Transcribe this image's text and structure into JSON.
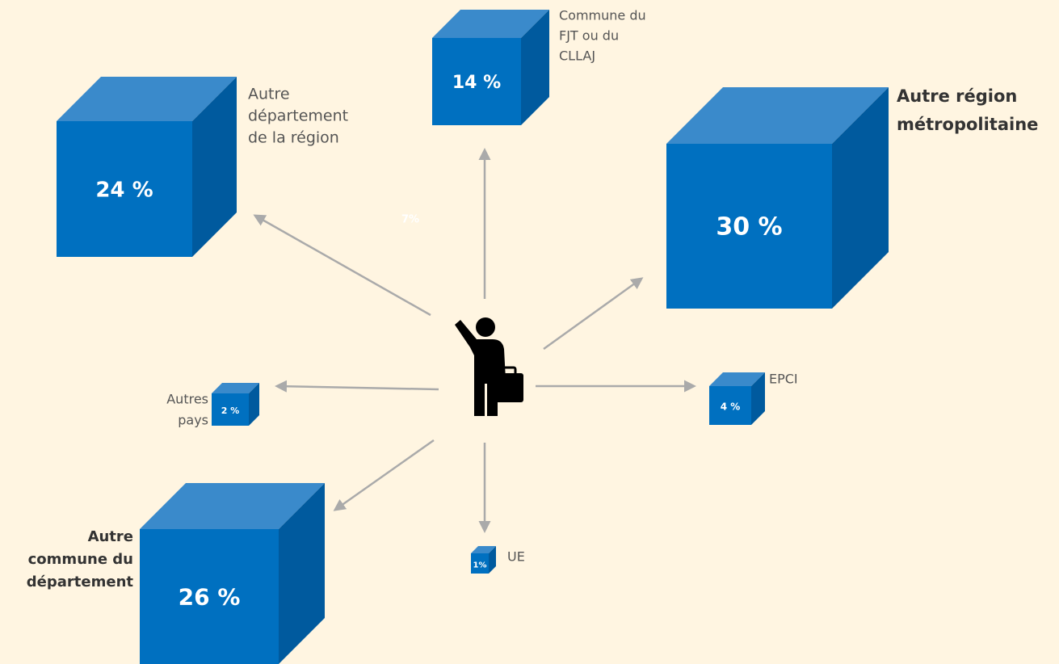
{
  "nodes": [
    {
      "label": [
        "Autre",
        "département",
        "de la région"
      ],
      "value": "24 %"
    },
    {
      "label": [
        "Commune du",
        "FJT ou du",
        "CLLAJ"
      ],
      "value": "14 %"
    },
    {
      "label": [
        "Autre région",
        "métropolitaine"
      ],
      "value": "30 %"
    },
    {
      "label": [
        "EPCI"
      ],
      "value": "4 %"
    },
    {
      "label": [
        "Autres",
        "pays"
      ],
      "value": "2 %"
    },
    {
      "label": [
        "Autre",
        "commune du",
        "département"
      ],
      "value": "26 %"
    },
    {
      "label": [
        "UE"
      ],
      "value": "1%"
    }
  ],
  "note": "7%"
}
